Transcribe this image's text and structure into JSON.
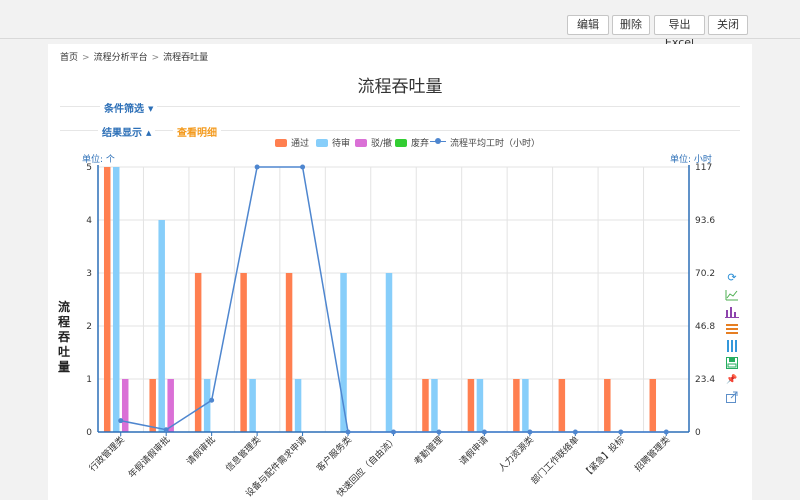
{
  "toolbar": {
    "buttons": [
      "编辑",
      "删除",
      "导出Excel",
      "关闭"
    ]
  },
  "breadcrumb": [
    "首页",
    "流程分析平台",
    "流程吞吐量"
  ],
  "page_title": "流程吞吐量",
  "sections": {
    "filter_label": "条件筛选",
    "result_label": "结果显示",
    "detail_link": "查看明细"
  },
  "colors": {
    "passed": "#ff7f50",
    "pending": "#87cefa",
    "rejected": "#da70d6",
    "discarded": "#32cd32",
    "avg_hours": "#4e86cf",
    "accent": "#2c6fb7"
  },
  "toolbox_icons": [
    "refresh-icon",
    "line-chart-icon",
    "bar-chart-icon",
    "stack-icon",
    "tiled-icon",
    "save-image-icon",
    "pin-icon",
    "export-icon"
  ],
  "chart_data": {
    "type": "bar",
    "title": "流程吞吐量",
    "legend_position": "top-center",
    "grid": true,
    "left_unit": "单位: 个",
    "right_unit": "单位: 小时",
    "ylabel": "流程吞吐量",
    "ylim": [
      0,
      5
    ],
    "y_ticks": [
      "0",
      "1",
      "2",
      "3",
      "4",
      "5"
    ],
    "y2lim": [
      0,
      117
    ],
    "y2_ticks": [
      "0",
      "23.4",
      "46.8",
      "70.2",
      "93.6",
      "117"
    ],
    "categories": [
      "行政管理类",
      "年假请假审批",
      "请假审批",
      "信息管理类",
      "设备与配件需求申请",
      "客户服务类",
      "快速回应（自由流）",
      "考勤管理",
      "请假申请",
      "人力资源类",
      "部门工作联络单",
      "【紧急】投标",
      "招聘管理类"
    ],
    "series": [
      {
        "name": "通过",
        "type": "bar",
        "values": [
          5,
          1,
          3,
          3,
          3,
          0,
          0,
          1,
          1,
          1,
          1,
          1,
          1
        ]
      },
      {
        "name": "待审",
        "type": "bar",
        "values": [
          5,
          4,
          1,
          1,
          1,
          3,
          3,
          1,
          1,
          1,
          0,
          0,
          0
        ]
      },
      {
        "name": "驳/撤",
        "type": "bar",
        "values": [
          1,
          1,
          0,
          0,
          0,
          0,
          0,
          0,
          0,
          0,
          0,
          0,
          0
        ]
      },
      {
        "name": "废弃",
        "type": "bar",
        "values": [
          0,
          0,
          0,
          0,
          0,
          0,
          0,
          0,
          0,
          0,
          0,
          0,
          0
        ]
      },
      {
        "name": "流程平均工时（小时）",
        "type": "line",
        "axis": "right",
        "values": [
          5,
          1,
          14,
          117,
          117,
          0,
          0,
          0,
          0,
          0,
          0,
          0,
          0
        ]
      }
    ]
  }
}
